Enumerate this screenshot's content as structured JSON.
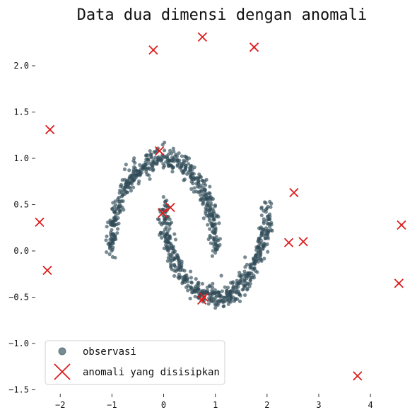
{
  "chart_data": {
    "type": "scatter",
    "title": "Data dua dimensi dengan anomali",
    "xlabel": "",
    "ylabel": "",
    "xlim": [
      -2.55,
      4.75
    ],
    "ylim": [
      -1.58,
      2.42
    ],
    "x_ticks": [
      -2,
      -1,
      0,
      1,
      2,
      3,
      4
    ],
    "y_ticks": [
      -1.5,
      -1.0,
      -0.5,
      0.0,
      0.5,
      1.0,
      1.5,
      2.0
    ],
    "x_tick_labels": [
      "−2",
      "−1",
      "0",
      "1",
      "2",
      "3",
      "4"
    ],
    "y_tick_labels": [
      "−1.5",
      "−1.0",
      "−0.5",
      "0.0",
      "0.5",
      "1.0",
      "1.5",
      "2.0"
    ],
    "grid": false,
    "legend_position": "lower-left",
    "colors": {
      "observations": "#2f4b57",
      "anomalies": "#dd1c1c"
    },
    "series": [
      {
        "name": "observasi",
        "marker": "circle",
        "description_shape": "two interleaving half-moons",
        "moon_upper": {
          "center": [
            0,
            0
          ],
          "radius": 1,
          "angle_range_deg": [
            0,
            180
          ]
        },
        "moon_lower": {
          "center": [
            1,
            0.5
          ],
          "radius": 1,
          "angle_range_deg": [
            180,
            360
          ]
        },
        "noise_sd": 0.06,
        "count": 1000
      },
      {
        "name": "anomali yang disisipkan",
        "marker": "x",
        "points": [
          [
            -0.2,
            2.17
          ],
          [
            0.75,
            2.31
          ],
          [
            1.75,
            2.2
          ],
          [
            -2.2,
            1.31
          ],
          [
            -0.08,
            1.08
          ],
          [
            2.52,
            0.63
          ],
          [
            0.13,
            0.47
          ],
          [
            -0.02,
            0.41
          ],
          [
            -2.4,
            0.31
          ],
          [
            4.6,
            0.28
          ],
          [
            2.42,
            0.09
          ],
          [
            2.7,
            0.1
          ],
          [
            -2.25,
            -0.21
          ],
          [
            0.78,
            -0.5
          ],
          [
            0.74,
            -0.53
          ],
          [
            4.55,
            -0.35
          ],
          [
            3.75,
            -1.35
          ]
        ]
      }
    ]
  }
}
